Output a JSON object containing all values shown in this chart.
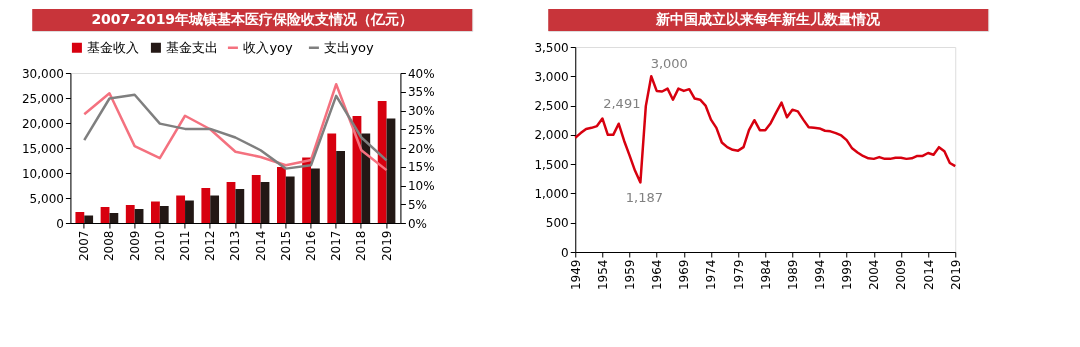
{
  "chart_data": [
    {
      "type": "bar",
      "title": "2007-2019年城镇基本医疗保险收支情况（亿元）",
      "categories": [
        "2007",
        "2008",
        "2009",
        "2010",
        "2011",
        "2012",
        "2013",
        "2014",
        "2015",
        "2016",
        "2017",
        "2018",
        "2019"
      ],
      "series": [
        {
          "name": "基金收入",
          "color": "#d7000f",
          "values": [
            2200,
            3200,
            3600,
            4300,
            5500,
            7000,
            8200,
            9600,
            11200,
            13100,
            17900,
            21400,
            24400
          ]
        },
        {
          "name": "基金支出",
          "color": "#231815",
          "values": [
            1500,
            2000,
            2800,
            3400,
            4500,
            5500,
            6800,
            8200,
            9300,
            10900,
            14400,
            17900,
            20900
          ]
        },
        {
          "name": "收入yoy",
          "type": "line",
          "axis": "y2",
          "color": "#f4717f",
          "values": [
            29,
            34.6,
            20.5,
            17.3,
            28.6,
            25,
            19,
            17.6,
            15.4,
            16.8,
            37,
            19.4,
            14.1
          ]
        },
        {
          "name": "支出yoy",
          "type": "line",
          "axis": "y2",
          "color": "#7f7f7f",
          "values": [
            22.1,
            33.2,
            34.2,
            26.5,
            25.1,
            25.1,
            22.8,
            19.4,
            14.5,
            15.4,
            33.9,
            22.8,
            16.7
          ]
        }
      ],
      "ylim": [
        0,
        30000
      ],
      "yticks": [
        0,
        {
          "value": 5000,
          "label": "5,000"
        },
        {
          "value": 10000,
          "label": "10,000"
        },
        {
          "value": 15000,
          "label": "15,000"
        },
        {
          "value": 20000,
          "label": "20,000"
        },
        {
          "value": 25000,
          "label": "25,000"
        },
        {
          "value": 30000,
          "label": "30,000"
        }
      ],
      "y2lim": [
        0,
        40
      ],
      "y2ticks": [
        {
          "value": 0,
          "label": "0%"
        },
        {
          "value": 5,
          "label": "5%"
        },
        {
          "value": 10,
          "label": "10%"
        },
        {
          "value": 15,
          "label": "15%"
        },
        {
          "value": 20,
          "label": "20%"
        },
        {
          "value": 25,
          "label": "25%"
        },
        {
          "value": 30,
          "label": "30%"
        },
        {
          "value": 35,
          "label": "35%"
        },
        {
          "value": 40,
          "label": "40%"
        }
      ],
      "grid": false,
      "legend": "top"
    },
    {
      "type": "line",
      "title": "新中国成立以来每年新生儿数量情况",
      "x": [
        1949,
        1950,
        1951,
        1952,
        1953,
        1954,
        1955,
        1956,
        1957,
        1958,
        1959,
        1960,
        1961,
        1962,
        1963,
        1964,
        1965,
        1966,
        1967,
        1968,
        1969,
        1970,
        1971,
        1972,
        1973,
        1974,
        1975,
        1976,
        1977,
        1978,
        1979,
        1980,
        1981,
        1982,
        1983,
        1984,
        1985,
        1986,
        1987,
        1988,
        1989,
        1990,
        1991,
        1992,
        1993,
        1994,
        1995,
        1996,
        1997,
        1998,
        1999,
        2000,
        2001,
        2002,
        2003,
        2004,
        2005,
        2006,
        2007,
        2008,
        2009,
        2010,
        2011,
        2012,
        2013,
        2014,
        2015,
        2016,
        2017,
        2018,
        2019
      ],
      "values": [
        1950,
        2030,
        2100,
        2120,
        2150,
        2280,
        2000,
        2000,
        2190,
        1900,
        1650,
        1390,
        1187,
        2491,
        3000,
        2750,
        2740,
        2790,
        2600,
        2790,
        2750,
        2780,
        2620,
        2600,
        2500,
        2260,
        2120,
        1870,
        1790,
        1745,
        1730,
        1790,
        2080,
        2250,
        2080,
        2080,
        2200,
        2380,
        2550,
        2300,
        2430,
        2400,
        2260,
        2130,
        2120,
        2110,
        2070,
        2060,
        2030,
        1990,
        1910,
        1770,
        1700,
        1640,
        1600,
        1590,
        1620,
        1590,
        1590,
        1610,
        1610,
        1590,
        1600,
        1640,
        1640,
        1690,
        1660,
        1790,
        1720,
        1520,
        1465
      ],
      "color": "#d7000f",
      "xlim": [
        1949,
        2019
      ],
      "xticks": [
        1949,
        1954,
        1959,
        1964,
        1969,
        1974,
        1979,
        1984,
        1989,
        1994,
        1999,
        2004,
        2009,
        2014,
        2019
      ],
      "ylim": [
        0,
        3500
      ],
      "yticks": [
        0,
        500,
        {
          "value": 1000,
          "label": "1,000"
        },
        {
          "value": 1500,
          "label": "1,500"
        },
        {
          "value": 2000,
          "label": "2,000"
        },
        {
          "value": 2500,
          "label": "2,500"
        },
        {
          "value": 3000,
          "label": "3,000"
        },
        {
          "value": 3500,
          "label": "3,500"
        }
      ],
      "annotations": [
        {
          "text": "3,000",
          "x": 1963,
          "y": 3000
        },
        {
          "text": "2,491",
          "x": 1962,
          "y": 2491
        },
        {
          "text": "1,187",
          "x": 1961,
          "y": 1187
        }
      ],
      "grid": false,
      "legend": false
    }
  ]
}
